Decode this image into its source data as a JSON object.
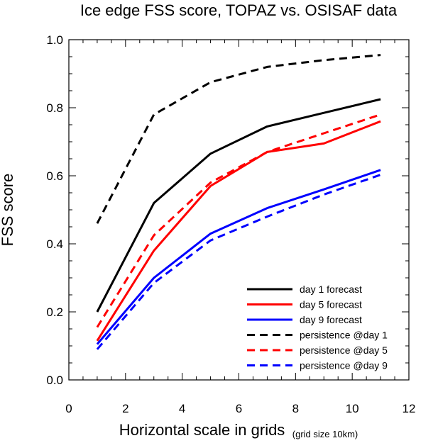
{
  "chart_data": {
    "type": "line",
    "title": "Ice edge FSS score, TOPAZ vs. OSISAF data",
    "xlabel": "Horizontal scale in grids",
    "xlabel_note": "(grid size 10km)",
    "ylabel": "FSS score",
    "xlim": [
      0,
      12
    ],
    "ylim": [
      0,
      1
    ],
    "xticks": [
      0,
      2,
      4,
      6,
      8,
      10,
      12
    ],
    "yticks": [
      0.0,
      0.2,
      0.4,
      0.6,
      0.8,
      1.0
    ],
    "xtick_labels": [
      "0",
      "2",
      "4",
      "6",
      "8",
      "10",
      "12"
    ],
    "ytick_labels": [
      "0.0",
      "0.2",
      "0.4",
      "0.6",
      "0.8",
      "1.0"
    ],
    "grid": false,
    "legend_position": "bottom-right",
    "x": [
      1,
      3,
      5,
      7,
      9,
      11
    ],
    "series": [
      {
        "name": "day 1 forecast",
        "color": "#000000",
        "dash": "solid",
        "values": [
          0.2,
          0.52,
          0.665,
          0.745,
          0.785,
          0.825
        ]
      },
      {
        "name": "day 5 forecast",
        "color": "#ff0000",
        "dash": "solid",
        "values": [
          0.115,
          0.38,
          0.57,
          0.67,
          0.695,
          0.76
        ]
      },
      {
        "name": "day 9 forecast",
        "color": "#0000ff",
        "dash": "solid",
        "values": [
          0.105,
          0.3,
          0.43,
          0.505,
          0.56,
          0.617
        ]
      },
      {
        "name": "persistence @day 1",
        "color": "#000000",
        "dash": "dashed",
        "values": [
          0.46,
          0.78,
          0.875,
          0.92,
          0.94,
          0.955
        ]
      },
      {
        "name": "persistence @day 5",
        "color": "#ff0000",
        "dash": "dashed",
        "values": [
          0.155,
          0.425,
          0.58,
          0.67,
          0.725,
          0.78
        ]
      },
      {
        "name": "persistence @day 9",
        "color": "#0000ff",
        "dash": "dashed",
        "values": [
          0.09,
          0.285,
          0.41,
          0.48,
          0.545,
          0.603
        ]
      }
    ]
  }
}
